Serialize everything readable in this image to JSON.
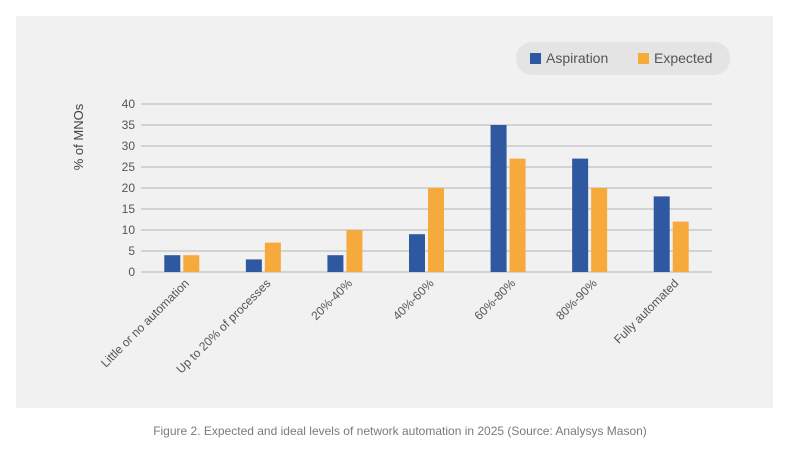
{
  "chart_data": {
    "type": "bar",
    "ylabel": "% of MNOs",
    "ylim": [
      0,
      40
    ],
    "yticks": [
      0,
      5,
      10,
      15,
      20,
      25,
      30,
      35,
      40
    ],
    "grid": true,
    "legend_position": "top-right",
    "categories": [
      "Little or no automation",
      "Up to 20% of processes",
      "20%-40%",
      "40%-60%",
      "60%-80%",
      "80%-90%",
      "Fully automated"
    ],
    "series": [
      {
        "name": "Aspiration",
        "color": "#2e59a0",
        "values": [
          4,
          3,
          4,
          9,
          35,
          27,
          18
        ]
      },
      {
        "name": "Expected",
        "color": "#f7aa3c",
        "values": [
          4,
          7,
          10,
          20,
          27,
          20,
          12
        ]
      }
    ]
  },
  "caption": "Figure 2. Expected and ideal levels of network automation in 2025 (Source: Analysys Mason)"
}
